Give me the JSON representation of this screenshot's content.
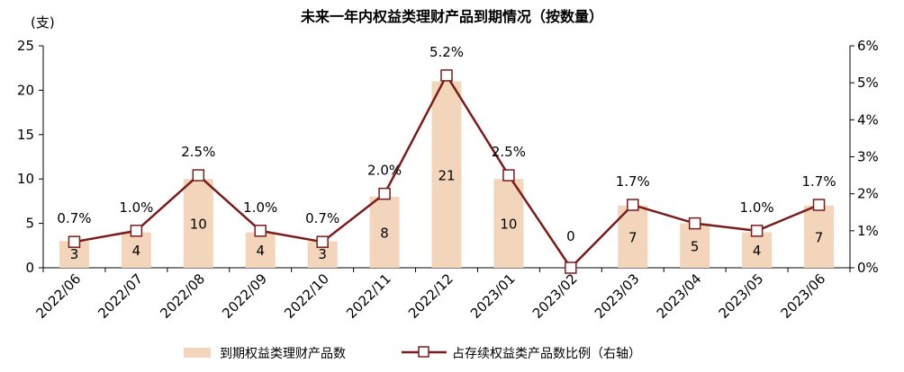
{
  "chart_data": {
    "type": "bar+line",
    "title": "未来一年内权益类理财产品到期情况（按数量）",
    "y_unit_label": "(支)",
    "categories": [
      "2022/06",
      "2022/07",
      "2022/08",
      "2022/09",
      "2022/10",
      "2022/11",
      "2022/12",
      "2023/01",
      "2023/02",
      "2023/03",
      "2023/04",
      "2023/05",
      "2023/06"
    ],
    "series": [
      {
        "name": "到期权益类理财产品数",
        "type": "bar",
        "axis": "left",
        "values": [
          3,
          4,
          10,
          4,
          3,
          8,
          21,
          10,
          0,
          7,
          5,
          4,
          7
        ],
        "labels": [
          "3",
          "4",
          "10",
          "4",
          "3",
          "8",
          "21",
          "10",
          "0",
          "7",
          "5",
          "4",
          "7"
        ]
      },
      {
        "name": "占存续权益类产品数比例（右轴）",
        "type": "line",
        "axis": "right",
        "values": [
          0.7,
          1.0,
          2.5,
          1.0,
          0.7,
          2.0,
          5.2,
          2.5,
          0,
          1.7,
          1.2,
          1.0,
          1.7
        ],
        "labels": [
          "0.7%",
          "1.0%",
          "2.5%",
          "1.0%",
          "0.7%",
          "2.0%",
          "5.2%",
          "2.5%",
          "",
          "1.7%",
          "",
          "1.0%",
          "1.7%"
        ]
      }
    ],
    "y_left": {
      "min": 0,
      "max": 25,
      "ticks": [
        "0",
        "5",
        "10",
        "15",
        "20",
        "25"
      ]
    },
    "y_right": {
      "min": 0,
      "max": 6,
      "ticks": [
        "0%",
        "1%",
        "2%",
        "3%",
        "4%",
        "5%",
        "6%"
      ]
    },
    "legend_position": "bottom",
    "grid": false,
    "colors": {
      "bar": "#f3d5bb",
      "line": "#7b1c1c",
      "marker_fill": "#ffffff"
    }
  }
}
